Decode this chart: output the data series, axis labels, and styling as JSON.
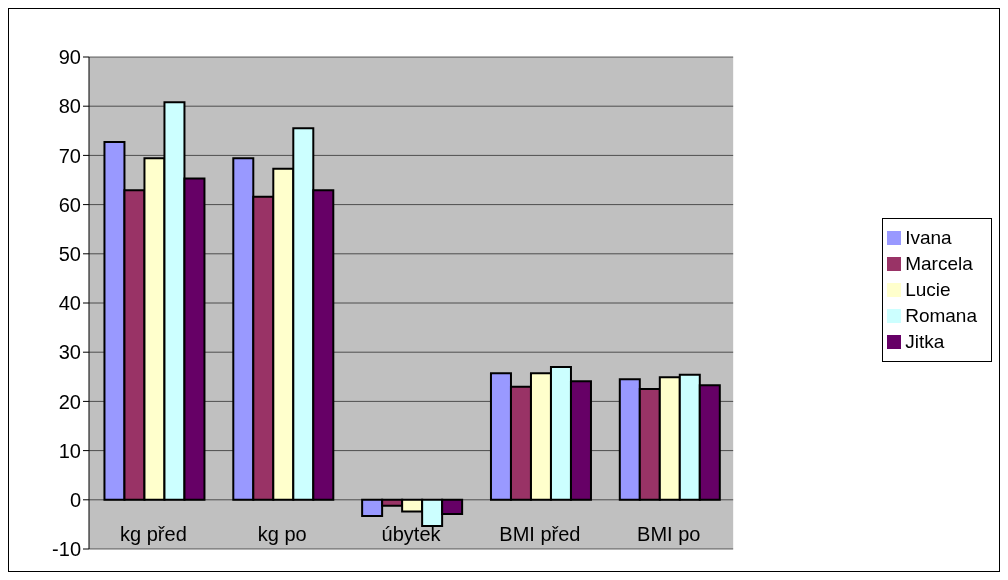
{
  "chart_data": {
    "type": "bar",
    "categories": [
      "kg před",
      "kg po",
      "úbytek",
      "BMI před",
      "BMI po"
    ],
    "series": [
      {
        "name": "Ivana",
        "color": "#9999ff",
        "values": [
          72.7,
          69.4,
          -3.3,
          25.7,
          24.5
        ]
      },
      {
        "name": "Marcela",
        "color": "#993366",
        "values": [
          62.9,
          61.6,
          -1.2,
          23.0,
          22.5
        ]
      },
      {
        "name": "Lucie",
        "color": "#ffffcc",
        "values": [
          69.4,
          67.3,
          -2.4,
          25.7,
          24.9
        ]
      },
      {
        "name": "Romana",
        "color": "#ccffff",
        "values": [
          80.8,
          75.5,
          -5.3,
          27.0,
          25.4
        ]
      },
      {
        "name": "Jitka",
        "color": "#660066",
        "values": [
          65.3,
          62.9,
          -2.9,
          24.1,
          23.3
        ]
      }
    ],
    "ylim": [
      -10,
      90
    ],
    "yticks": [
      -10,
      0,
      10,
      20,
      30,
      40,
      50,
      60,
      70,
      80,
      90
    ],
    "grid": "y",
    "legend": "right"
  }
}
